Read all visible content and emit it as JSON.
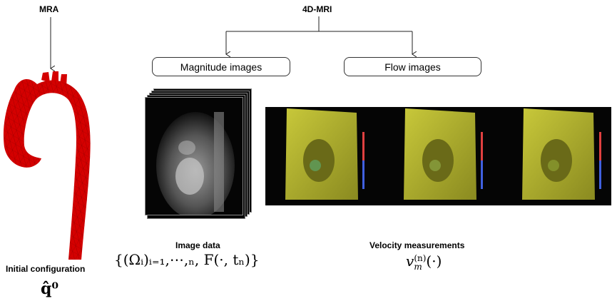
{
  "headings": {
    "mra": "MRA",
    "mri": "4D-MRI",
    "image_data": "Image data",
    "velocity": "Velocity measurements",
    "initial_config": "Initial configuration"
  },
  "boxes": {
    "magnitude": "Magnitude images",
    "flow": "Flow images"
  },
  "formulas": {
    "image_data": "{(Ωᵢ)ᵢ₌₁,⋯,ₙ, F(·, tₙ)}",
    "velocity_base": "v",
    "velocity_sub": "m",
    "velocity_sup": "(n)",
    "velocity_arg": "(·)",
    "initial": "q̂⁰"
  },
  "icons": [
    "aorta-mesh-image",
    "mri-magnitude-stack-image",
    "flow-volume-image"
  ]
}
